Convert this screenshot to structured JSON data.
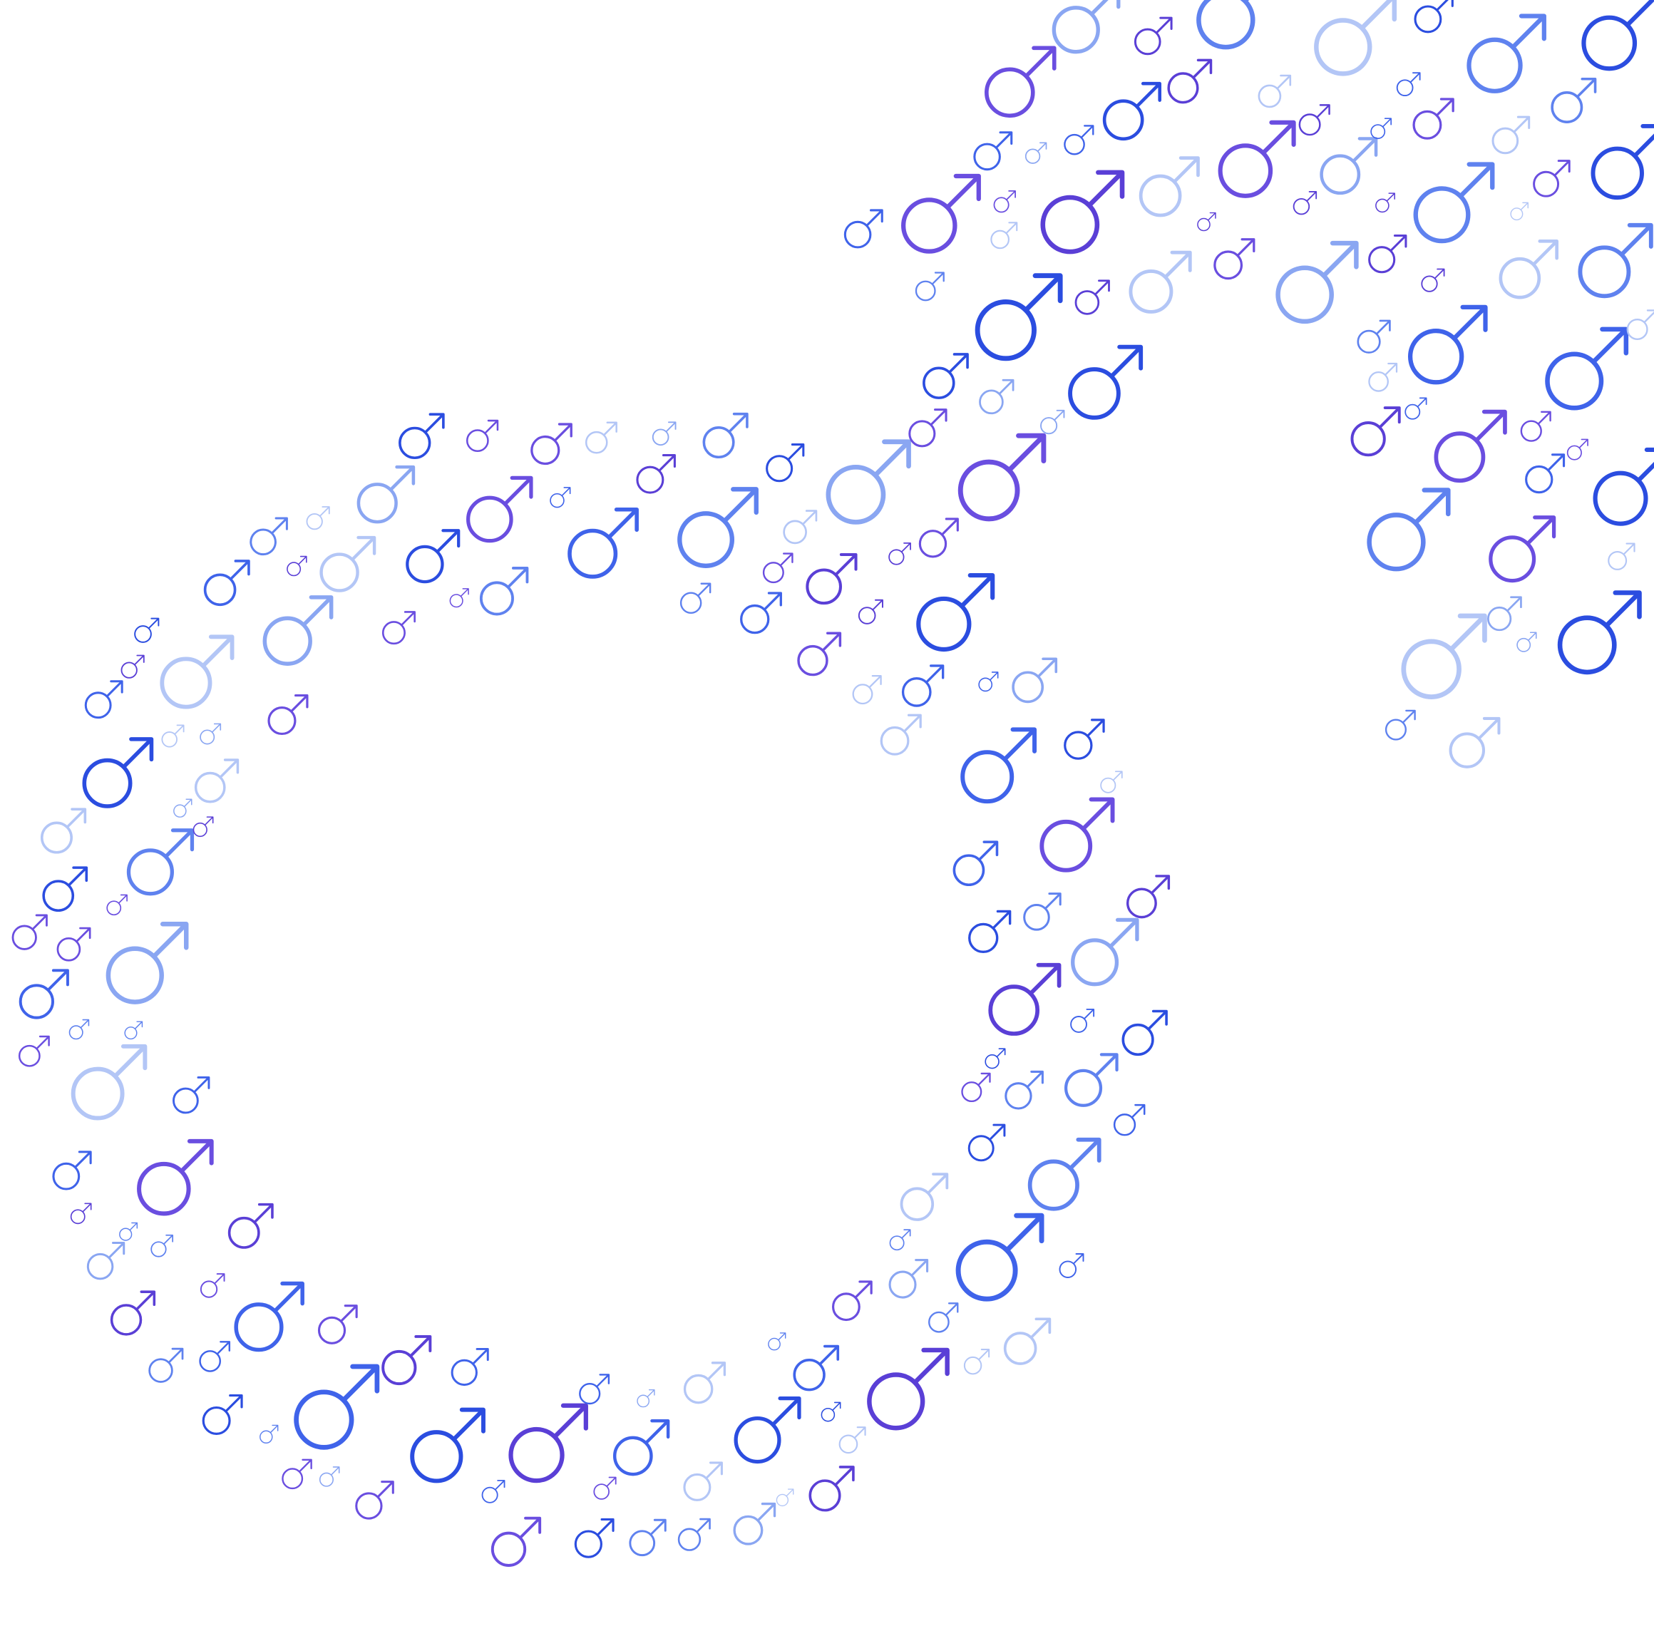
{
  "artwork": {
    "background_color": "#ffffff",
    "motif_icon": "male-symbol-icon",
    "composition_icon": "male-symbol-icon",
    "palette": [
      "#2b4de0",
      "#3f63ea",
      "#5f82ef",
      "#8aa6f2",
      "#b3c6f6",
      "#5a3fd6",
      "#6a4ee0"
    ]
  }
}
